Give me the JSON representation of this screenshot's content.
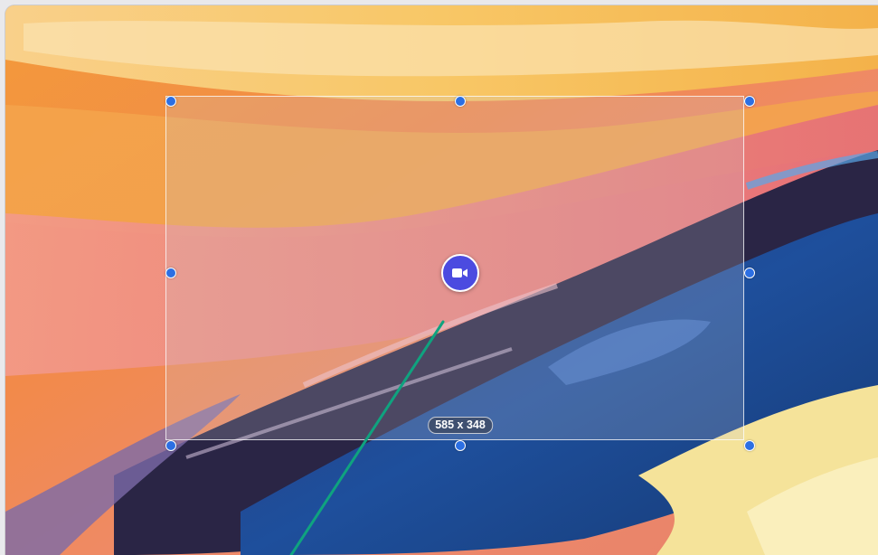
{
  "app": {
    "mode": "screen-recording-region-selection"
  },
  "selection": {
    "size_label": "585 x 348",
    "border_color": "#ffffff",
    "handle_color": "#2c6fe3"
  },
  "record_button": {
    "icon": "video-camera-icon",
    "color": "#4b4be0"
  },
  "annotation": {
    "arrow_color": "#0fa37f"
  }
}
